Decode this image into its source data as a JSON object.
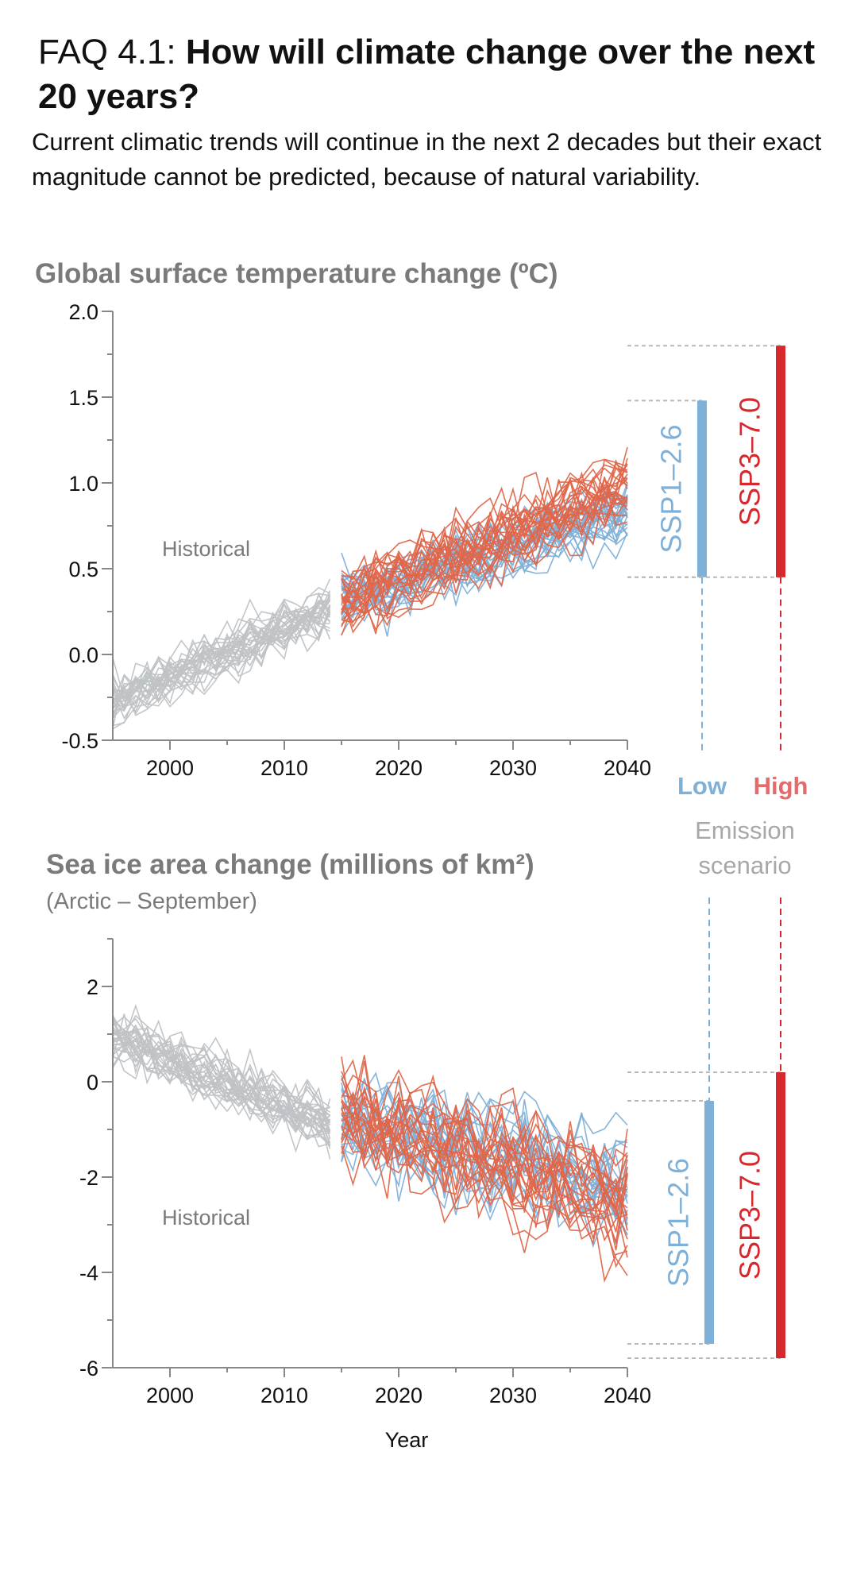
{
  "header": {
    "prefix": "FAQ 4.1: ",
    "title": "How will climate change over the next 20 years?",
    "subtitle": "Current climatic trends will continue in the next 2 decades but their exact magnitude cannot be predicted, because of natural variability."
  },
  "legend": {
    "low": "Low",
    "high": "High",
    "caption_line1": "Emission",
    "caption_line2": "scenario"
  },
  "colors": {
    "historical": "#bfc3c6",
    "ssp126": "#7fb0d8",
    "ssp370": "#e0664a",
    "ssp126_bar": "#7fb0d8",
    "ssp370_bar": "#d7282e",
    "axis": "#888888",
    "guide": "#b8b8b8"
  },
  "chart_data": [
    {
      "type": "line",
      "title": "Global surface temperature change (ºC)",
      "subtitle": "",
      "xlabel": "",
      "xlim": [
        1995,
        2040
      ],
      "ylim": [
        -0.5,
        2.0
      ],
      "xticks": [
        2000,
        2010,
        2020,
        2030,
        2040
      ],
      "yticks": [
        -0.5,
        0.0,
        0.5,
        1.0,
        1.5,
        2.0
      ],
      "ytick_labels": [
        "-0.5",
        "0.0",
        "0.5",
        "1.0",
        "1.5",
        "2.0"
      ],
      "annotation": "Historical",
      "series": [
        {
          "name": "Historical",
          "x_range": [
            1995,
            2014
          ],
          "trend_start": -0.28,
          "trend_end": 0.25,
          "spread": 0.14,
          "members": 30
        },
        {
          "name": "SSP1-2.6",
          "x_range": [
            2015,
            2040
          ],
          "trend_start": 0.33,
          "trend_end": 0.85,
          "spread": 0.17,
          "members": 25
        },
        {
          "name": "SSP3-7.0",
          "x_range": [
            2015,
            2040
          ],
          "trend_start": 0.32,
          "trend_end": 0.98,
          "spread": 0.19,
          "members": 25
        }
      ],
      "ranges_2040": [
        {
          "name": "SSP1-2.6",
          "label": "SSP1–2.6",
          "low": 0.45,
          "high": 1.48
        },
        {
          "name": "SSP3-7.0",
          "label": "SSP3–7.0",
          "low": 0.45,
          "high": 1.8
        }
      ]
    },
    {
      "type": "line",
      "title": "Sea ice area change (millions of km²)",
      "subtitle": "(Arctic – September)",
      "xlabel": "Year",
      "xlim": [
        1995,
        2040
      ],
      "ylim": [
        -6,
        3
      ],
      "xticks": [
        2000,
        2010,
        2020,
        2030,
        2040
      ],
      "yticks": [
        -6,
        -4,
        -2,
        0,
        2
      ],
      "ytick_labels": [
        "-6",
        "-4",
        "-2",
        "0",
        "2"
      ],
      "annotation": "Historical",
      "series": [
        {
          "name": "Historical",
          "x_range": [
            1995,
            2014
          ],
          "trend_start": 0.9,
          "trend_end": -0.9,
          "spread": 0.55,
          "members": 30
        },
        {
          "name": "SSP1-2.6",
          "x_range": [
            2015,
            2040
          ],
          "trend_start": -0.8,
          "trend_end": -2.3,
          "spread": 0.95,
          "members": 22
        },
        {
          "name": "SSP3-7.0",
          "x_range": [
            2015,
            2040
          ],
          "trend_start": -0.7,
          "trend_end": -2.6,
          "spread": 1.05,
          "members": 22
        }
      ],
      "ranges_2040": [
        {
          "name": "SSP1-2.6",
          "label": "SSP1–2.6",
          "low": -5.5,
          "high": -0.4
        },
        {
          "name": "SSP3-7.0",
          "label": "SSP3–7.0",
          "low": -5.8,
          "high": 0.2
        }
      ]
    }
  ]
}
